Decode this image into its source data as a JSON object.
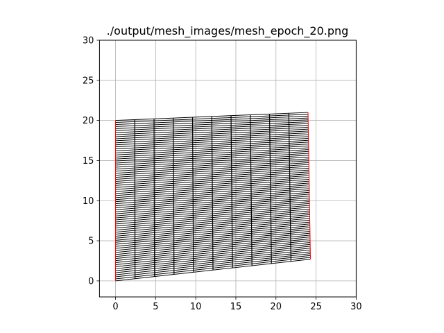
{
  "chart_data": {
    "type": "line",
    "title": "./output/mesh_images/mesh_epoch_20.png",
    "xlabel": "",
    "ylabel": "",
    "xlim": [
      -2,
      30
    ],
    "ylim": [
      -2,
      30
    ],
    "xticks": [
      "0",
      "5",
      "10",
      "15",
      "20",
      "25",
      "30"
    ],
    "yticks": [
      "0",
      "5",
      "10",
      "15",
      "20",
      "25",
      "30"
    ],
    "grid": true,
    "mesh": {
      "corners": {
        "bottom_left": [
          0,
          0
        ],
        "bottom_right": [
          24.3,
          2.7
        ],
        "top_left": [
          0,
          20
        ],
        "top_right": [
          24.0,
          21.0
        ]
      },
      "vertical_lines": 11,
      "horizontal_lines": 80,
      "line_color": "#000000",
      "boundary_color": "#ff0000"
    }
  }
}
